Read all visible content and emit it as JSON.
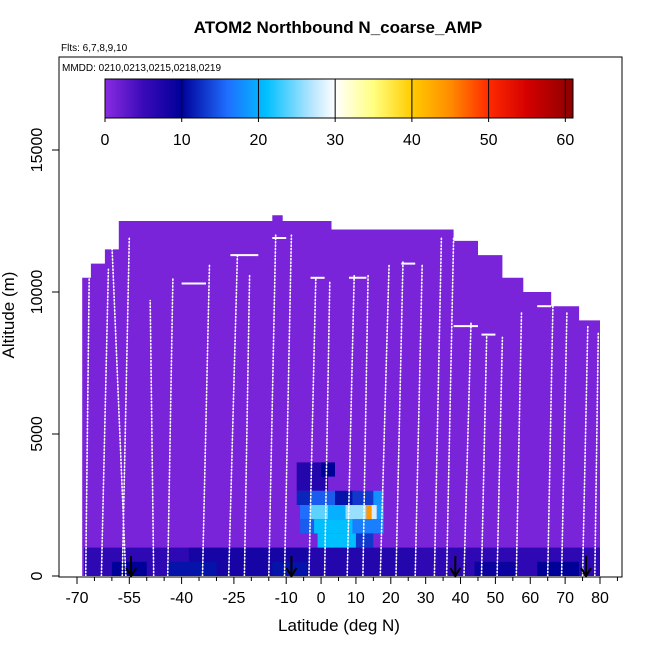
{
  "chart_data": {
    "type": "heatmap",
    "title": "ATOM2 Northbound N_coarse_AMP",
    "subtitle_flights": "Flts: 6,7,8,9,10",
    "subtitle_dates": "MMDD: 0210,0213,0215,0218,0219",
    "xlabel": "Latitude (deg N)",
    "ylabel": "Altitude (m)",
    "xlim": [
      -70,
      85
    ],
    "ylim": [
      0,
      17500
    ],
    "x_ticks": [
      -70,
      -55,
      -40,
      -25,
      -10,
      0,
      10,
      20,
      30,
      40,
      50,
      60,
      70,
      80
    ],
    "x_tick_labels": [
      "-70",
      "-55",
      "-40",
      "-25",
      "-10",
      "0",
      "10",
      "20",
      "30",
      "40",
      "50",
      "60",
      "70",
      "80"
    ],
    "minor_x_ticks": [
      -65,
      -60,
      -50,
      -45,
      -35,
      -30,
      -20,
      -15,
      -5,
      5,
      15,
      25,
      35,
      45,
      55,
      65,
      75,
      85
    ],
    "y_ticks": [
      0,
      5000,
      10000,
      15000
    ],
    "y_tick_labels": [
      "0",
      "5000",
      "10000",
      "15000"
    ],
    "colorbar": {
      "min": 0,
      "max": 61,
      "ticks": [
        0,
        10,
        20,
        30,
        40,
        50,
        60
      ],
      "tick_labels": [
        "0",
        "10",
        "20",
        "30",
        "40",
        "50",
        "60"
      ],
      "stops": [
        {
          "v": 0,
          "color": "#8a2be2"
        },
        {
          "v": 5,
          "color": "#3a0ab8"
        },
        {
          "v": 10,
          "color": "#000099"
        },
        {
          "v": 16,
          "color": "#1f6fff"
        },
        {
          "v": 21,
          "color": "#00bfff"
        },
        {
          "v": 27,
          "color": "#b8e6ff"
        },
        {
          "v": 30,
          "color": "#ffffff"
        },
        {
          "v": 35,
          "color": "#ffff80"
        },
        {
          "v": 40,
          "color": "#ffcc00"
        },
        {
          "v": 45,
          "color": "#ff8c00"
        },
        {
          "v": 50,
          "color": "#ff2a00"
        },
        {
          "v": 55,
          "color": "#d40000"
        },
        {
          "v": 61,
          "color": "#8b0000"
        }
      ]
    },
    "background_value": 1,
    "envelope_top_m": [
      {
        "lat": -68.5,
        "alt": 10500
      },
      {
        "lat": -66,
        "alt": 10500
      },
      {
        "lat": -66,
        "alt": 11000
      },
      {
        "lat": -62,
        "alt": 11000
      },
      {
        "lat": -62,
        "alt": 11500
      },
      {
        "lat": -58,
        "alt": 11500
      },
      {
        "lat": -58,
        "alt": 12500
      },
      {
        "lat": -14,
        "alt": 12500
      },
      {
        "lat": -14,
        "alt": 12700
      },
      {
        "lat": -11,
        "alt": 12700
      },
      {
        "lat": -11,
        "alt": 12500
      },
      {
        "lat": 3,
        "alt": 12500
      },
      {
        "lat": 3,
        "alt": 12200
      },
      {
        "lat": 38,
        "alt": 12200
      },
      {
        "lat": 38,
        "alt": 11800
      },
      {
        "lat": 45,
        "alt": 11800
      },
      {
        "lat": 45,
        "alt": 11300
      },
      {
        "lat": 52,
        "alt": 11300
      },
      {
        "lat": 52,
        "alt": 10500
      },
      {
        "lat": 58,
        "alt": 10500
      },
      {
        "lat": 58,
        "alt": 10000
      },
      {
        "lat": 66,
        "alt": 10000
      },
      {
        "lat": 66,
        "alt": 9500
      },
      {
        "lat": 74,
        "alt": 9500
      },
      {
        "lat": 74,
        "alt": 9000
      },
      {
        "lat": 80,
        "alt": 9000
      }
    ],
    "cells": [
      {
        "lat": -68,
        "alt": 0,
        "dlat": 30,
        "dalt": 1000,
        "v": 6
      },
      {
        "lat": -38,
        "alt": 0,
        "dlat": 35,
        "dalt": 1000,
        "v": 8
      },
      {
        "lat": -3,
        "alt": 0,
        "dlat": 30,
        "dalt": 1000,
        "v": 7
      },
      {
        "lat": 27,
        "alt": 0,
        "dlat": 53,
        "dalt": 1000,
        "v": 6
      },
      {
        "lat": -60,
        "alt": 0,
        "dlat": 10,
        "dalt": 500,
        "v": 10
      },
      {
        "lat": -44,
        "alt": 0,
        "dlat": 14,
        "dalt": 500,
        "v": 11
      },
      {
        "lat": -14,
        "alt": 0,
        "dlat": 10,
        "dalt": 500,
        "v": 11
      },
      {
        "lat": 44,
        "alt": 0,
        "dlat": 12,
        "dalt": 500,
        "v": 9
      },
      {
        "lat": 62,
        "alt": 0,
        "dlat": 12,
        "dalt": 500,
        "v": 10
      },
      {
        "lat": -7,
        "alt": 3000,
        "dlat": 9,
        "dalt": 1000,
        "v": 7
      },
      {
        "lat": -7,
        "alt": 2500,
        "dlat": 4,
        "dalt": 500,
        "v": 12
      },
      {
        "lat": -3,
        "alt": 2500,
        "dlat": 7,
        "dalt": 500,
        "v": 15
      },
      {
        "lat": 4,
        "alt": 2500,
        "dlat": 6,
        "dalt": 500,
        "v": 11
      },
      {
        "lat": -6,
        "alt": 2000,
        "dlat": 3,
        "dalt": 500,
        "v": 16
      },
      {
        "lat": -3,
        "alt": 2000,
        "dlat": 5,
        "dalt": 500,
        "v": 24
      },
      {
        "lat": 2,
        "alt": 2000,
        "dlat": 5,
        "dalt": 500,
        "v": 20
      },
      {
        "lat": 7,
        "alt": 2000,
        "dlat": 6,
        "dalt": 500,
        "v": 26
      },
      {
        "lat": 13,
        "alt": 2000,
        "dlat": 1.5,
        "dalt": 500,
        "v": 44
      },
      {
        "lat": 14.5,
        "alt": 2000,
        "dlat": 1.5,
        "dalt": 500,
        "v": 28
      },
      {
        "lat": 16,
        "alt": 2000,
        "dlat": 2,
        "dalt": 500,
        "v": 19
      },
      {
        "lat": -6,
        "alt": 1500,
        "dlat": 4,
        "dalt": 500,
        "v": 15
      },
      {
        "lat": -2,
        "alt": 1500,
        "dlat": 11,
        "dalt": 500,
        "v": 21
      },
      {
        "lat": 9,
        "alt": 1500,
        "dlat": 9,
        "dalt": 500,
        "v": 17
      },
      {
        "lat": -1,
        "alt": 1000,
        "dlat": 11,
        "dalt": 500,
        "v": 21
      },
      {
        "lat": 10,
        "alt": 1000,
        "dlat": 5,
        "dalt": 500,
        "v": 13
      },
      {
        "lat": 9,
        "alt": 2500,
        "dlat": 6,
        "dalt": 500,
        "v": 13
      },
      {
        "lat": 15,
        "alt": 2500,
        "dlat": 3,
        "dalt": 500,
        "v": 18
      },
      {
        "lat": 0,
        "alt": 3500,
        "dlat": 4,
        "dalt": 500,
        "v": 10
      }
    ],
    "profiles": [
      {
        "lat0": -67.5,
        "lat1": -66.5,
        "alt_top": 10500
      },
      {
        "lat0": -63,
        "lat1": -61,
        "alt_top": 10800
      },
      {
        "lat0": -57,
        "lat1": -55,
        "alt_top": 11900
      },
      {
        "lat0": -56,
        "lat1": -60,
        "alt_top": 11700
      },
      {
        "lat0": -48,
        "lat1": -49,
        "alt_top": 9700
      },
      {
        "lat0": -44,
        "lat1": -42.5,
        "alt_top": 10500
      },
      {
        "lat0": -34,
        "lat1": -32,
        "alt_top": 11000
      },
      {
        "lat0": -26.5,
        "lat1": -24,
        "alt_top": 11300
      },
      {
        "lat0": -22,
        "lat1": -20.5,
        "alt_top": 10600
      },
      {
        "lat0": -15,
        "lat1": -13,
        "alt_top": 12000
      },
      {
        "lat0": -10.5,
        "lat1": -8.5,
        "alt_top": 12000
      },
      {
        "lat0": -3.5,
        "lat1": -1.5,
        "alt_top": 10500
      },
      {
        "lat0": 1,
        "lat1": 2.5,
        "alt_top": 10400
      },
      {
        "lat0": 7.5,
        "lat1": 9.5,
        "alt_top": 10600
      },
      {
        "lat0": 12,
        "lat1": 13.5,
        "alt_top": 10600
      },
      {
        "lat0": 17,
        "lat1": 19.5,
        "alt_top": 11000
      },
      {
        "lat0": 21.5,
        "lat1": 23.5,
        "alt_top": 11100
      },
      {
        "lat0": 27,
        "lat1": 29,
        "alt_top": 11000
      },
      {
        "lat0": 32.5,
        "lat1": 34.5,
        "alt_top": 11900
      },
      {
        "lat0": 36,
        "lat1": 38,
        "alt_top": 11900
      },
      {
        "lat0": 41,
        "lat1": 43,
        "alt_top": 8900
      },
      {
        "lat0": 46,
        "lat1": 47.5,
        "alt_top": 8500
      },
      {
        "lat0": 50.5,
        "lat1": 52,
        "alt_top": 8400
      },
      {
        "lat0": 56,
        "lat1": 57.5,
        "alt_top": 9300
      },
      {
        "lat0": 65,
        "lat1": 66.5,
        "alt_top": 9500
      },
      {
        "lat0": 69,
        "lat1": 70.5,
        "alt_top": 9300
      },
      {
        "lat0": 75,
        "lat1": 76.5,
        "alt_top": 8800
      },
      {
        "lat0": 78.5,
        "lat1": 79.5,
        "alt_top": 8600
      }
    ],
    "level_legs": [
      {
        "lat0": -40,
        "lat1": -33,
        "alt": 10300
      },
      {
        "lat0": -26,
        "lat1": -18,
        "alt": 11300
      },
      {
        "lat0": -14,
        "lat1": -10,
        "alt": 11900
      },
      {
        "lat0": -3,
        "lat1": 1,
        "alt": 10500
      },
      {
        "lat0": 8,
        "lat1": 13,
        "alt": 10500
      },
      {
        "lat0": 23,
        "lat1": 27,
        "alt": 11000
      },
      {
        "lat0": 38,
        "lat1": 45,
        "alt": 8800
      },
      {
        "lat0": 46,
        "lat1": 50,
        "alt": 8500
      },
      {
        "lat0": 62,
        "lat1": 66,
        "alt": 9500
      }
    ],
    "arrows_lat": [
      -54.5,
      -8.5,
      38.5,
      76
    ]
  }
}
